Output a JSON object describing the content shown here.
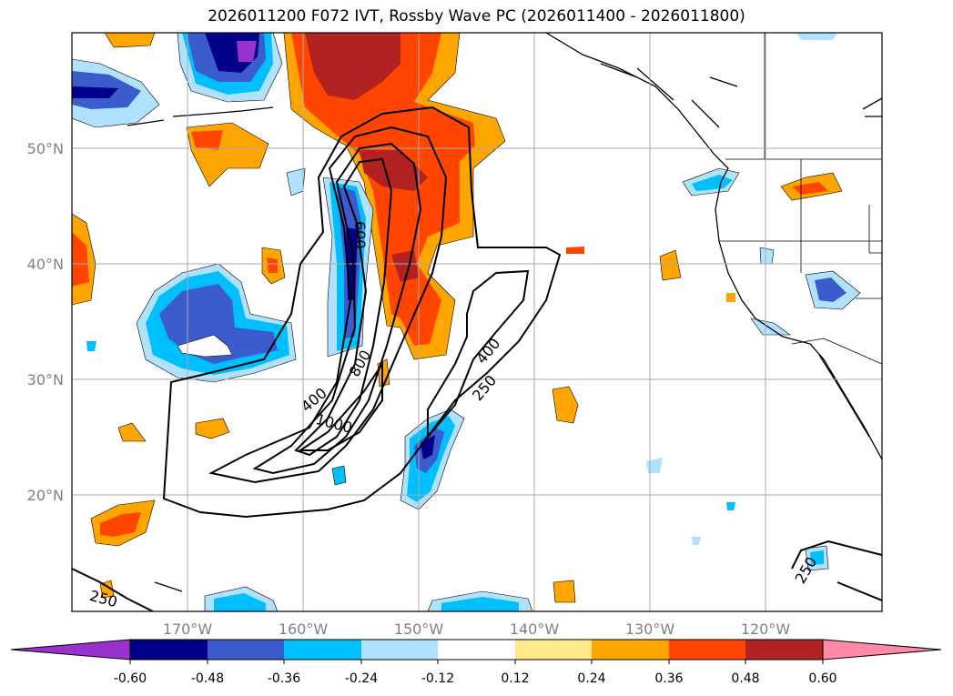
{
  "title": "2026011200 F072 IVT, Rossby Wave PC (2026011400 - 2026011800)",
  "map": {
    "region": "North Pacific / Western North America",
    "lon_labels": [
      "170°W",
      "160°W",
      "150°W",
      "140°W",
      "130°W",
      "120°W"
    ],
    "lat_labels": [
      "50°N",
      "40°N",
      "30°N",
      "20°N"
    ],
    "gridlines": true
  },
  "contours": {
    "variable": "IVT",
    "labels": [
      "600",
      "800",
      "400",
      "1000",
      "400",
      "250",
      "250",
      "250"
    ]
  },
  "colorbar": {
    "orientation": "horizontal",
    "extend": "both",
    "tick_labels": [
      "-0.60",
      "-0.48",
      "-0.36",
      "-0.24",
      "-0.12",
      "0.12",
      "0.24",
      "0.36",
      "0.48",
      "0.60"
    ],
    "colors": [
      "#9932cc",
      "#00008b",
      "#3a5ccc",
      "#00bfff",
      "#b0e2ff",
      "#ffffff",
      "#ffe98a",
      "#ffa500",
      "#ff4500",
      "#b22222",
      "#ff89a8"
    ]
  },
  "icons": {
    "colorbar-left-arrow": "triangle-left",
    "colorbar-right-arrow": "triangle-right"
  }
}
